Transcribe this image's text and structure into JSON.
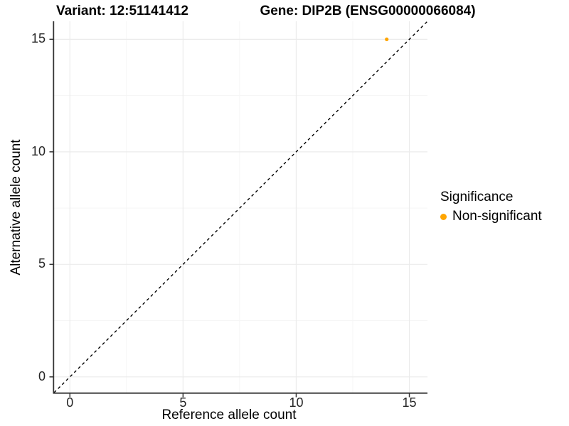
{
  "chart_data": {
    "type": "scatter",
    "titles": [
      "Variant: 12:51141412",
      "Gene: DIP2B (ENSG00000066084)"
    ],
    "xlabel": "Reference allele count",
    "ylabel": "Alternative allele count",
    "xticks": [
      0,
      5,
      10,
      15
    ],
    "yticks": [
      0,
      5,
      10,
      15
    ],
    "xlim": [
      -0.7,
      15.8
    ],
    "ylim": [
      -0.7,
      15.8
    ],
    "grid": "major and minor gridlines, light gray on white panel",
    "points": [
      {
        "x": 14,
        "y": 15,
        "series": "Non-significant"
      }
    ],
    "identity_line": {
      "style": "dashed",
      "equation": "y = x"
    },
    "legend": {
      "position": "right",
      "title": "Significance",
      "entries": [
        {
          "label": "Non-significant",
          "color": "#FFA500",
          "marker": "circle"
        }
      ]
    }
  },
  "colors": {
    "background": "#FFFFFF",
    "point": "#FFA500",
    "grid_major": "#EBEBEB",
    "grid_minor": "#F5F5F5",
    "axis_line": "#333333",
    "dashed_line": "#000000",
    "tick_text": "#262626",
    "title_text": "#000000"
  }
}
